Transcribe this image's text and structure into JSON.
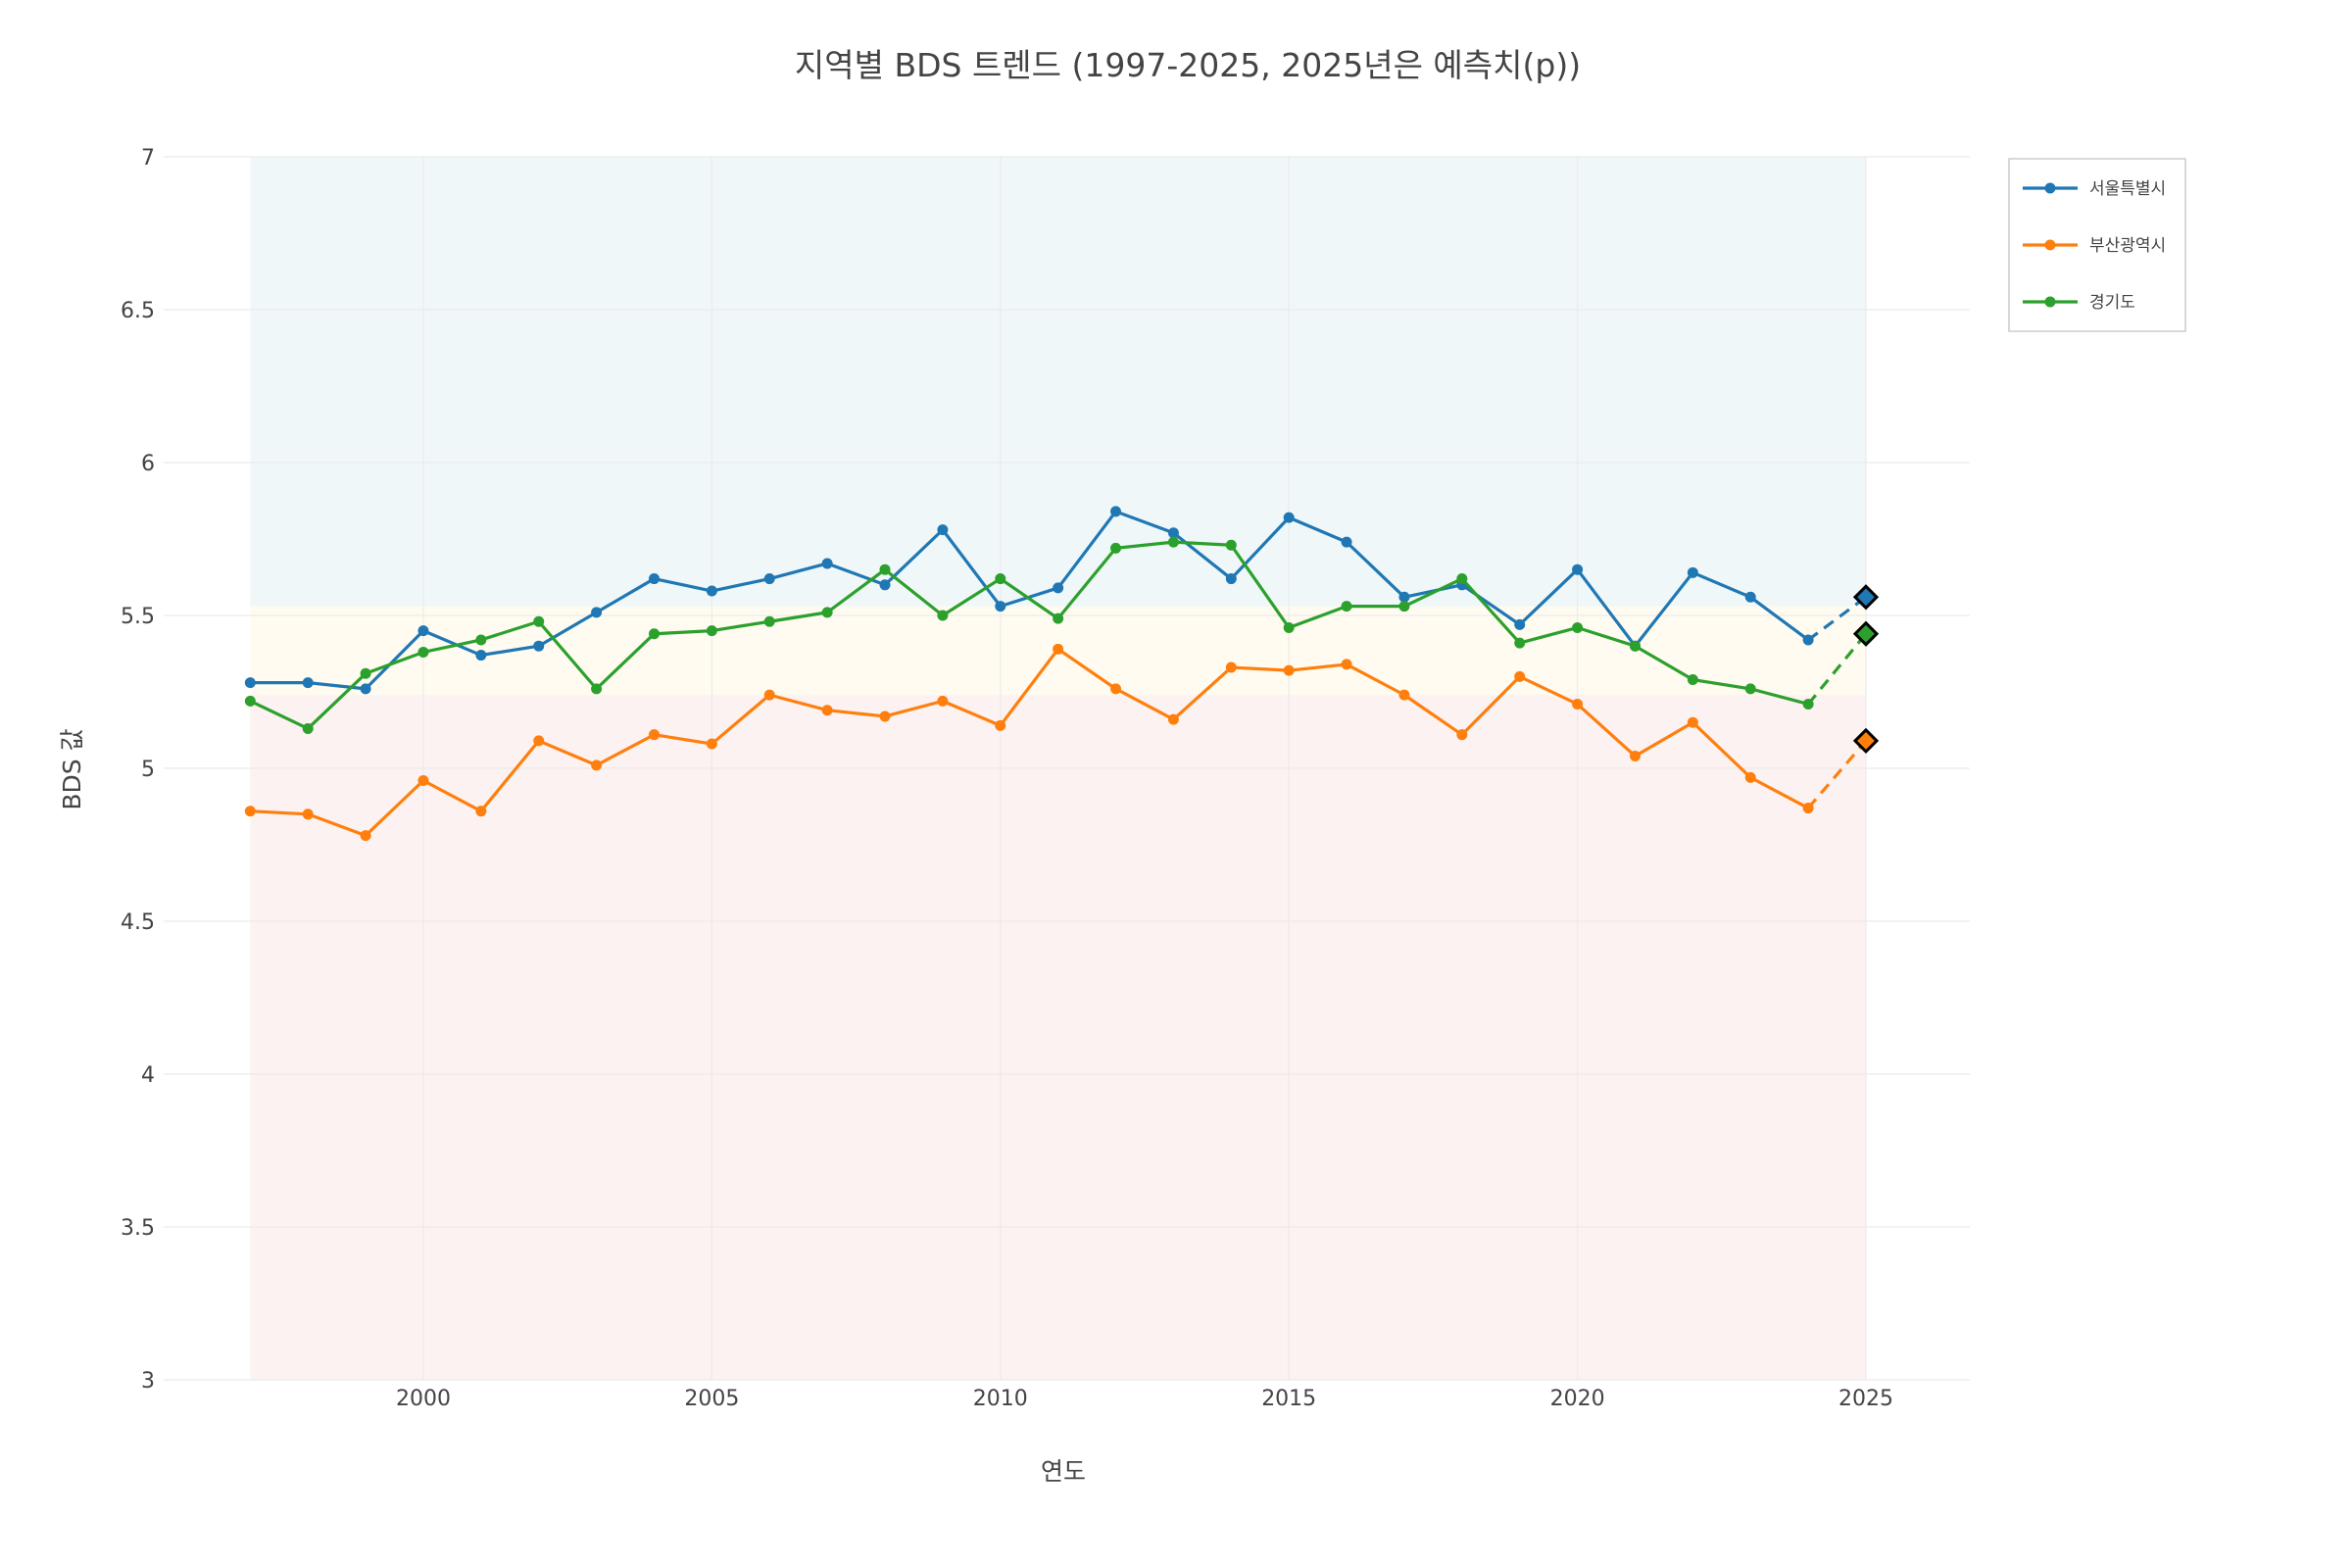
{
  "chart_data": {
    "type": "line",
    "title": "지역별 BDS 트렌드 (1997-2025, 2025년은 예측치(p))",
    "xlabel": "연도",
    "ylabel": "BDS 값",
    "xlim": [
      1995.5,
      2026.8
    ],
    "ylim": [
      3,
      7
    ],
    "xticks": [
      2000,
      2005,
      2010,
      2015,
      2020,
      2025
    ],
    "xtick_labels": [
      "2000",
      "2005",
      "2010",
      "2015",
      "2020",
      "2025"
    ],
    "yticks": [
      3,
      3.5,
      4,
      4.5,
      5,
      5.5,
      6,
      6.5,
      7
    ],
    "ytick_labels": [
      "3",
      "3.5",
      "4",
      "4.5",
      "5",
      "5.5",
      "6",
      "6.5",
      "7"
    ],
    "grid": true,
    "legend_position": "top-right",
    "bands": [
      {
        "y0": 5.53,
        "y1": 7,
        "color": "#f0f7f8"
      },
      {
        "y0": 5.24,
        "y1": 5.53,
        "color": "#fffbf0"
      },
      {
        "y0": 3,
        "y1": 5.24,
        "color": "#fbf2f1"
      }
    ],
    "band_x": [
      1997,
      2025
    ],
    "x": [
      1997,
      1998,
      1999,
      2000,
      2001,
      2002,
      2003,
      2004,
      2005,
      2006,
      2007,
      2008,
      2009,
      2010,
      2011,
      2012,
      2013,
      2014,
      2015,
      2016,
      2017,
      2018,
      2019,
      2020,
      2021,
      2022,
      2023,
      2024
    ],
    "forecast_x": 2025,
    "series": [
      {
        "name": "서울특별시",
        "color": "#1f77b4",
        "values": [
          5.28,
          5.28,
          5.26,
          5.45,
          5.37,
          5.4,
          5.51,
          5.62,
          5.58,
          5.62,
          5.67,
          5.6,
          5.78,
          5.53,
          5.59,
          5.84,
          5.77,
          5.62,
          5.82,
          5.74,
          5.56,
          5.6,
          5.47,
          5.65,
          5.4,
          5.64,
          5.56,
          5.42
        ],
        "forecast": 5.56
      },
      {
        "name": "부산광역시",
        "color": "#ff7f0e",
        "values": [
          4.86,
          4.85,
          4.78,
          4.96,
          4.86,
          5.09,
          5.01,
          5.11,
          5.08,
          5.24,
          5.19,
          5.17,
          5.22,
          5.14,
          5.39,
          5.26,
          5.16,
          5.33,
          5.32,
          5.34,
          5.24,
          5.11,
          5.3,
          5.21,
          5.04,
          5.15,
          4.97,
          4.87
        ],
        "forecast": 5.09
      },
      {
        "name": "경기도",
        "color": "#2ca02c",
        "values": [
          5.22,
          5.13,
          5.31,
          5.38,
          5.42,
          5.48,
          5.26,
          5.44,
          5.45,
          5.48,
          5.51,
          5.65,
          5.5,
          5.62,
          5.49,
          5.72,
          5.74,
          5.73,
          5.46,
          5.53,
          5.53,
          5.62,
          5.41,
          5.46,
          5.4,
          5.29,
          5.26,
          5.21
        ],
        "forecast": 5.44
      }
    ]
  }
}
